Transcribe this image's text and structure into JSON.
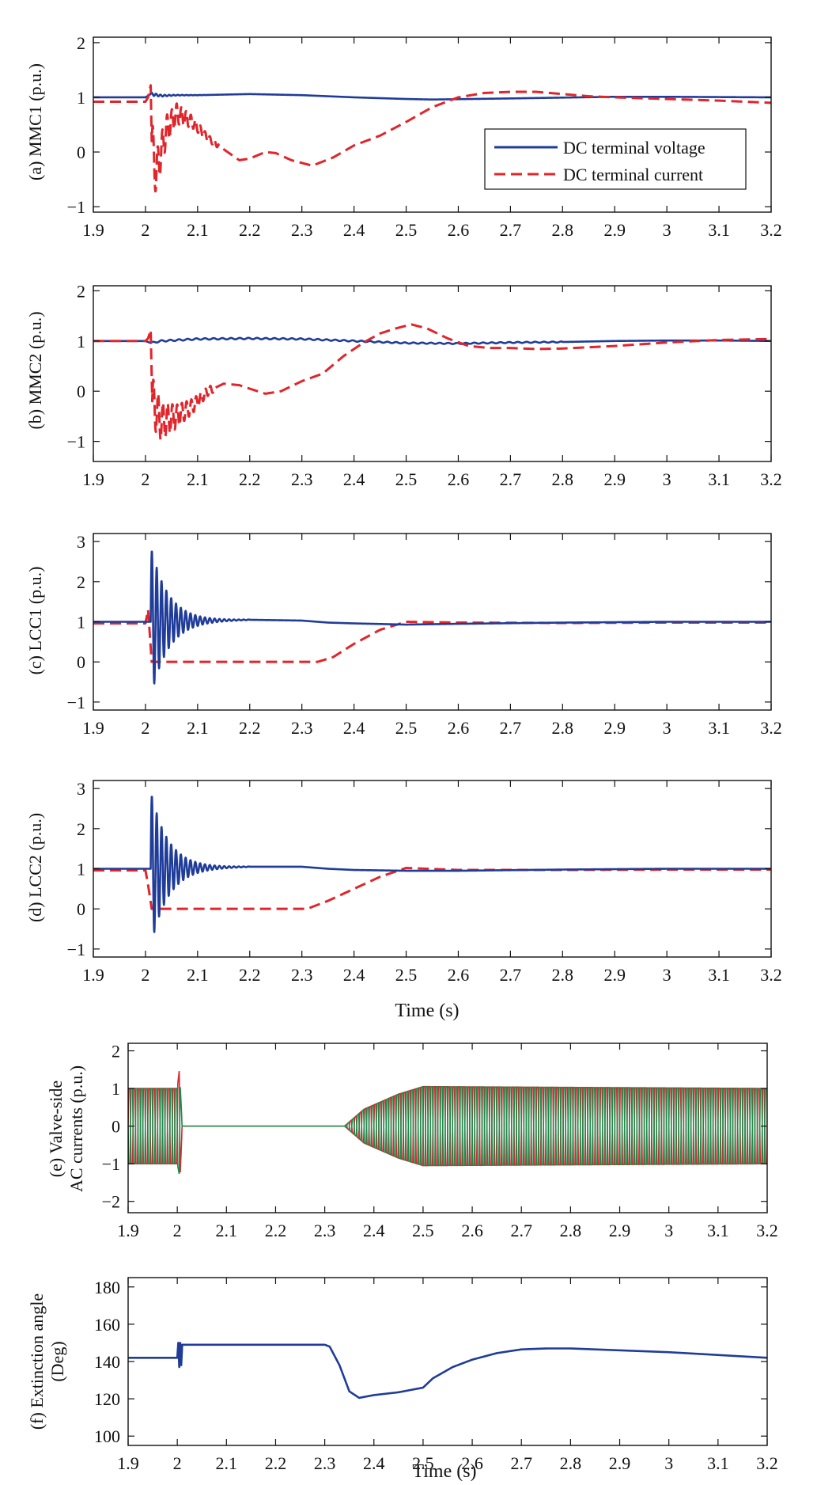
{
  "colors": {
    "voltage": "#1f3c99",
    "current": "#e0252b",
    "current_light": "#f08a8e",
    "phase_red": "#d42a30",
    "phase_green": "#1f8a4c",
    "angle": "#1f3c99",
    "axis": "#111111"
  },
  "chart_data": [
    {
      "id": "a",
      "type": "line",
      "ylabel": "(a) MMC1 (p.u.)",
      "xlabel": "",
      "xlim": [
        1.9,
        3.2
      ],
      "ylim": [
        -1.1,
        2.1
      ],
      "xticks": [
        1.9,
        2.0,
        2.1,
        2.2,
        2.3,
        2.4,
        2.5,
        2.6,
        2.7,
        2.8,
        2.9,
        3.0,
        3.1,
        3.2
      ],
      "xticklabels": [
        "1.9",
        "2",
        "2.1",
        "2.2",
        "2.3",
        "2.4",
        "2.5",
        "2.6",
        "2.7",
        "2.8",
        "2.9",
        "3",
        "3.1",
        "3.2"
      ],
      "yticks": [
        -1,
        0,
        1,
        2
      ],
      "yticklabels": [
        "−1",
        "0",
        "1",
        "2"
      ],
      "legend": [
        "DC terminal voltage",
        "DC terminal current"
      ],
      "legend_position": "right-middle",
      "series": [
        {
          "name": "DC terminal voltage",
          "style": "solid",
          "color": "voltage",
          "x": [
            1.9,
            2.0,
            2.01,
            2.03,
            2.06,
            2.1,
            2.15,
            2.2,
            2.3,
            2.4,
            2.5,
            2.55,
            2.7,
            2.9,
            3.0,
            3.2
          ],
          "y": [
            1.0,
            1.0,
            1.06,
            1.03,
            1.04,
            1.04,
            1.05,
            1.06,
            1.04,
            1.0,
            0.97,
            0.96,
            0.98,
            1.01,
            1.01,
            1.0
          ],
          "oscillation": {
            "x0": 2.01,
            "x1": 2.12,
            "amp": 0.03,
            "freq": 120,
            "decay": 30
          }
        },
        {
          "name": "DC terminal current",
          "style": "dashed",
          "color": "current",
          "x": [
            1.9,
            2.0,
            2.005,
            2.01,
            2.012,
            2.02,
            2.04,
            2.06,
            2.09,
            2.12,
            2.15,
            2.18,
            2.2,
            2.23,
            2.25,
            2.28,
            2.32,
            2.36,
            2.4,
            2.45,
            2.5,
            2.55,
            2.6,
            2.65,
            2.7,
            2.75,
            2.8,
            2.85,
            2.9,
            3.0,
            3.1,
            3.2
          ],
          "y": [
            0.92,
            0.92,
            1.0,
            1.22,
            0.2,
            -0.4,
            0.4,
            0.7,
            0.55,
            0.25,
            0.05,
            -0.15,
            -0.12,
            0.0,
            -0.02,
            -0.15,
            -0.25,
            -0.1,
            0.12,
            0.3,
            0.55,
            0.82,
            1.0,
            1.08,
            1.1,
            1.1,
            1.06,
            1.02,
            1.0,
            0.97,
            0.94,
            0.9
          ],
          "oscillation": {
            "x0": 2.012,
            "x1": 2.14,
            "amp": 0.45,
            "freq": 110,
            "decay": 18
          }
        }
      ]
    },
    {
      "id": "b",
      "type": "line",
      "ylabel": "(b) MMC2 (p.u.)",
      "xlabel": "",
      "xlim": [
        1.9,
        3.2
      ],
      "ylim": [
        -1.4,
        2.1
      ],
      "xticks": [
        1.9,
        2.0,
        2.1,
        2.2,
        2.3,
        2.4,
        2.5,
        2.6,
        2.7,
        2.8,
        2.9,
        3.0,
        3.1,
        3.2
      ],
      "xticklabels": [
        "1.9",
        "2",
        "2.1",
        "2.2",
        "2.3",
        "2.4",
        "2.5",
        "2.6",
        "2.7",
        "2.8",
        "2.9",
        "3",
        "3.1",
        "3.2"
      ],
      "yticks": [
        -1,
        0,
        1,
        2
      ],
      "yticklabels": [
        "−1",
        "0",
        "1",
        "2"
      ],
      "series": [
        {
          "name": "DC terminal voltage",
          "style": "solid",
          "color": "voltage",
          "x": [
            1.9,
            2.0,
            2.01,
            2.03,
            2.1,
            2.2,
            2.3,
            2.4,
            2.5,
            2.6,
            2.7,
            2.8,
            2.9,
            3.0,
            3.1,
            3.2
          ],
          "y": [
            1.0,
            1.0,
            0.96,
            1.0,
            1.04,
            1.05,
            1.04,
            1.0,
            0.96,
            0.95,
            0.97,
            0.98,
            1.0,
            1.01,
            1.01,
            1.0
          ],
          "oscillation": {
            "x0": 2.01,
            "x1": 2.8,
            "amp": 0.015,
            "freq": 60,
            "decay": 0.5
          }
        },
        {
          "name": "DC terminal current",
          "style": "dashed",
          "color": "current",
          "x": [
            1.9,
            2.0,
            2.005,
            2.01,
            2.013,
            2.03,
            2.06,
            2.09,
            2.12,
            2.15,
            2.18,
            2.2,
            2.23,
            2.26,
            2.3,
            2.34,
            2.38,
            2.42,
            2.45,
            2.48,
            2.51,
            2.54,
            2.58,
            2.62,
            2.66,
            2.7,
            2.75,
            2.8,
            2.9,
            3.0,
            3.1,
            3.2
          ],
          "y": [
            1.0,
            1.0,
            1.05,
            1.22,
            -0.2,
            -0.6,
            -0.5,
            -0.3,
            0.0,
            0.15,
            0.12,
            0.05,
            -0.05,
            0.0,
            0.2,
            0.35,
            0.7,
            0.98,
            1.15,
            1.25,
            1.33,
            1.25,
            1.05,
            0.9,
            0.86,
            0.86,
            0.84,
            0.85,
            0.9,
            0.97,
            1.02,
            1.04
          ],
          "oscillation": {
            "x0": 2.013,
            "x1": 2.13,
            "amp": 0.5,
            "freq": 110,
            "decay": 16
          }
        }
      ]
    },
    {
      "id": "c",
      "type": "line",
      "ylabel": "(c) LCC1 (p.u.)",
      "xlabel": "",
      "xlim": [
        1.9,
        3.2
      ],
      "ylim": [
        -1.2,
        3.2
      ],
      "xticks": [
        1.9,
        2.0,
        2.1,
        2.2,
        2.3,
        2.4,
        2.5,
        2.6,
        2.7,
        2.8,
        2.9,
        3.0,
        3.1,
        3.2
      ],
      "xticklabels": [
        "1.9",
        "2",
        "2.1",
        "2.2",
        "2.3",
        "2.4",
        "2.5",
        "2.6",
        "2.7",
        "2.8",
        "2.9",
        "3",
        "3.1",
        "3.2"
      ],
      "yticks": [
        -1,
        0,
        1,
        2,
        3
      ],
      "yticklabels": [
        "−1",
        "0",
        "1",
        "2",
        "3"
      ],
      "series": [
        {
          "name": "DC terminal current",
          "style": "dashed",
          "color": "current",
          "x": [
            1.9,
            2.0,
            2.005,
            2.012,
            2.015,
            2.33,
            2.36,
            2.4,
            2.45,
            2.5,
            2.6,
            2.8,
            3.0,
            3.2
          ],
          "y": [
            0.96,
            0.96,
            1.3,
            0.0,
            0.0,
            0.0,
            0.12,
            0.45,
            0.8,
            1.0,
            0.98,
            0.97,
            0.98,
            0.98
          ]
        },
        {
          "name": "DC terminal voltage",
          "style": "solid",
          "color": "voltage",
          "x": [
            1.9,
            2.0,
            2.01,
            2.2,
            2.3,
            2.35,
            2.4,
            2.5,
            2.6,
            2.8,
            3.0,
            3.2
          ],
          "y": [
            1.0,
            1.0,
            1.0,
            1.05,
            1.03,
            0.98,
            0.96,
            0.93,
            0.95,
            0.98,
            1.0,
            1.0
          ],
          "oscillation": {
            "x0": 2.01,
            "x1": 2.2,
            "amp": 1.9,
            "freq": 108,
            "decay": 30
          }
        }
      ]
    },
    {
      "id": "d",
      "type": "line",
      "ylabel": "(d) LCC2 (p.u.)",
      "xlabel": "Time (s)",
      "xlim": [
        1.9,
        3.2
      ],
      "ylim": [
        -1.2,
        3.2
      ],
      "xticks": [
        1.9,
        2.0,
        2.1,
        2.2,
        2.3,
        2.4,
        2.5,
        2.6,
        2.7,
        2.8,
        2.9,
        3.0,
        3.1,
        3.2
      ],
      "xticklabels": [
        "1.9",
        "2",
        "2.1",
        "2.2",
        "2.3",
        "2.4",
        "2.5",
        "2.6",
        "2.7",
        "2.8",
        "2.9",
        "3",
        "3.1",
        "3.2"
      ],
      "yticks": [
        -1,
        0,
        1,
        2,
        3
      ],
      "yticklabels": [
        "−1",
        "0",
        "1",
        "2",
        "3"
      ],
      "series": [
        {
          "name": "DC terminal current",
          "style": "dashed",
          "color": "current",
          "x": [
            1.9,
            2.0,
            2.005,
            2.012,
            2.015,
            2.31,
            2.35,
            2.4,
            2.45,
            2.5,
            2.6,
            2.8,
            3.0,
            3.2
          ],
          "y": [
            0.96,
            0.96,
            0.6,
            0.0,
            0.0,
            0.0,
            0.2,
            0.5,
            0.8,
            1.02,
            0.97,
            0.97,
            0.98,
            0.98
          ]
        },
        {
          "name": "DC terminal voltage",
          "style": "solid",
          "color": "voltage",
          "x": [
            1.9,
            2.0,
            2.01,
            2.2,
            2.3,
            2.35,
            2.4,
            2.5,
            2.6,
            2.8,
            3.0,
            3.2
          ],
          "y": [
            1.0,
            1.0,
            1.0,
            1.05,
            1.05,
            1.0,
            0.97,
            0.95,
            0.95,
            0.98,
            1.0,
            1.0
          ],
          "oscillation": {
            "x0": 2.01,
            "x1": 2.2,
            "amp": 1.95,
            "freq": 108,
            "decay": 30
          }
        }
      ]
    },
    {
      "id": "e",
      "type": "line",
      "ylabel": "(e) Valve-side",
      "ylabel2": "AC currents (p.u.)",
      "xlabel": "",
      "xlim": [
        1.9,
        3.2
      ],
      "ylim": [
        -2.3,
        2.2
      ],
      "xticks": [
        1.9,
        2.0,
        2.1,
        2.2,
        2.3,
        2.4,
        2.5,
        2.6,
        2.7,
        2.8,
        2.9,
        3.0,
        3.1,
        3.2
      ],
      "xticklabels": [
        "1.9",
        "2",
        "2.1",
        "2.2",
        "2.3",
        "2.4",
        "2.5",
        "2.6",
        "2.7",
        "2.8",
        "2.9",
        "3",
        "3.1",
        "3.2"
      ],
      "yticks": [
        -2,
        -1,
        0,
        1,
        2
      ],
      "yticklabels": [
        "−2",
        "−1",
        "0",
        "1",
        "2"
      ],
      "series": [
        {
          "name": "phase current red",
          "color": "phase_red",
          "envelope": {
            "x": [
              1.9,
              2.0,
              2.005,
              2.01,
              2.34,
              2.38,
              2.45,
              2.5,
              3.2
            ],
            "y": [
              1.0,
              1.0,
              1.6,
              0.0,
              0.0,
              0.45,
              0.85,
              1.05,
              1.0
            ]
          },
          "period": 0.01
        },
        {
          "name": "phase current green",
          "color": "phase_green",
          "envelope": {
            "x": [
              1.9,
              2.0,
              2.005,
              2.01,
              2.34,
              2.38,
              2.45,
              2.5,
              3.2
            ],
            "y": [
              1.0,
              1.0,
              1.35,
              0.0,
              0.0,
              0.45,
              0.85,
              1.05,
              1.0
            ]
          },
          "period": 0.01
        }
      ]
    },
    {
      "id": "f",
      "type": "line",
      "ylabel": "(f) Extinction angle",
      "ylabel2": "(Deg)",
      "xlabel": "Time (s)",
      "xlim": [
        1.9,
        3.2
      ],
      "ylim": [
        95,
        185
      ],
      "xticks": [
        1.9,
        2.0,
        2.1,
        2.2,
        2.3,
        2.4,
        2.5,
        2.6,
        2.7,
        2.8,
        2.9,
        3.0,
        3.1,
        3.2
      ],
      "xticklabels": [
        "1.9",
        "2",
        "2.1",
        "2.2",
        "2.3",
        "2.4",
        "2.5",
        "2.6",
        "2.7",
        "2.8",
        "2.9",
        "3",
        "3.1",
        "3.2"
      ],
      "yticks": [
        100,
        120,
        140,
        160,
        180
      ],
      "yticklabels": [
        "100",
        "120",
        "140",
        "160",
        "180"
      ],
      "series": [
        {
          "name": "Extinction angle",
          "style": "solid",
          "color": "angle",
          "x": [
            1.9,
            2.0,
            2.002,
            2.004,
            2.006,
            2.008,
            2.01,
            2.3,
            2.31,
            2.33,
            2.35,
            2.37,
            2.4,
            2.45,
            2.5,
            2.52,
            2.56,
            2.6,
            2.65,
            2.7,
            2.75,
            2.8,
            2.9,
            3.0,
            3.1,
            3.2
          ],
          "y": [
            142,
            142,
            150,
            137,
            150,
            138,
            149,
            149,
            148,
            138,
            124,
            120.5,
            122,
            123.5,
            126,
            131,
            137,
            141,
            144.5,
            146.5,
            147,
            147,
            146,
            145,
            143.5,
            142
          ]
        }
      ]
    }
  ]
}
